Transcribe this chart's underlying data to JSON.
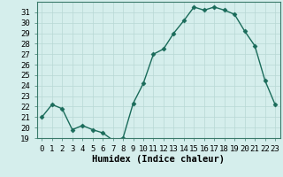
{
  "x": [
    0,
    1,
    2,
    3,
    4,
    5,
    6,
    7,
    8,
    9,
    10,
    11,
    12,
    13,
    14,
    15,
    16,
    17,
    18,
    19,
    20,
    21,
    22,
    23
  ],
  "y": [
    21.0,
    22.2,
    21.8,
    19.8,
    20.2,
    19.8,
    19.5,
    18.8,
    19.0,
    22.3,
    24.2,
    27.0,
    27.5,
    29.0,
    30.2,
    31.5,
    31.2,
    31.5,
    31.2,
    30.8,
    29.2,
    27.8,
    24.5,
    22.2
  ],
  "line_color": "#1a6b5a",
  "marker": "D",
  "marker_size": 2.5,
  "bg_color": "#d5eeec",
  "grid_color": "#b8d8d5",
  "xlabel": "Humidex (Indice chaleur)",
  "ylim": [
    19,
    32
  ],
  "xlim": [
    -0.5,
    23.5
  ],
  "yticks": [
    19,
    20,
    21,
    22,
    23,
    24,
    25,
    26,
    27,
    28,
    29,
    30,
    31
  ],
  "xticks": [
    0,
    1,
    2,
    3,
    4,
    5,
    6,
    7,
    8,
    9,
    10,
    11,
    12,
    13,
    14,
    15,
    16,
    17,
    18,
    19,
    20,
    21,
    22,
    23
  ],
  "xtick_labels": [
    "0",
    "1",
    "2",
    "3",
    "4",
    "5",
    "6",
    "7",
    "8",
    "9",
    "10",
    "11",
    "12",
    "13",
    "14",
    "15",
    "16",
    "17",
    "18",
    "19",
    "20",
    "21",
    "22",
    "23"
  ],
  "xlabel_fontsize": 7.5,
  "tick_fontsize": 6.5,
  "line_width": 1.0
}
